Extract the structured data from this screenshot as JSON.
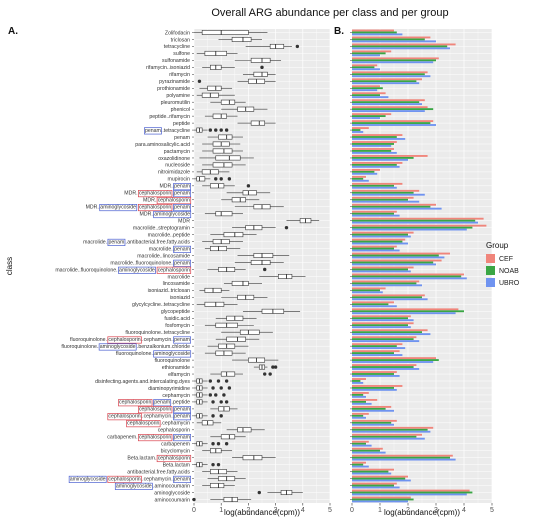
{
  "chart_data": {
    "type": "bar",
    "title": "Overall ARG abundance per class and per group",
    "panels": [
      "A.",
      "B."
    ],
    "ylabel": "class",
    "xlabel_a": "log(abundance(cpm))",
    "xlabel_b": "log(abundance(cpm))",
    "xlim_a": [
      0,
      5
    ],
    "xlim_b": [
      0,
      5
    ],
    "xticks": [
      "0",
      "1",
      "2",
      "3",
      "4",
      "5"
    ],
    "grid": true,
    "legend_title": "Group",
    "legend_position": "right",
    "colors": {
      "CEF": "#f0857b",
      "NOAB": "#3aa644",
      "UBRO": "#6f93f0",
      "panel_bg": "#ebebeb",
      "grid": "#ffffff",
      "highlight_red": "#d9434e",
      "highlight_blue": "#4a5fd0"
    },
    "series": [
      {
        "name": "CEF",
        "color": "#f0857b"
      },
      {
        "name": "NOAB",
        "color": "#3aa644"
      },
      {
        "name": "UBRO",
        "color": "#6f93f0"
      }
    ],
    "categories": [
      {
        "label": "Zolifodacin",
        "box": [
          0,
          0.3,
          1.0,
          2.0,
          2.7
        ],
        "out": [],
        "bars": [
          1.5,
          1.6,
          1.8
        ]
      },
      {
        "label": "triclosan",
        "box": [
          0.9,
          1.4,
          1.8,
          2.1,
          2.5
        ],
        "out": [],
        "bars": [
          2.8,
          2.6,
          3.0
        ]
      },
      {
        "label": "tetracycline",
        "box": [
          1.9,
          2.8,
          3.0,
          3.3,
          3.6
        ],
        "out": [
          3.8
        ],
        "bars": [
          3.7,
          3.4,
          3.5
        ]
      },
      {
        "label": "sulfone",
        "box": [
          0.1,
          0.4,
          0.8,
          1.2,
          1.6
        ],
        "out": [],
        "bars": [
          1.4,
          1.2,
          1.0
        ]
      },
      {
        "label": "sulfonamide",
        "box": [
          1.5,
          2.1,
          2.5,
          2.8,
          3.2
        ],
        "out": [],
        "bars": [
          3.1,
          3.0,
          2.9
        ]
      },
      {
        "label": "rifamycin..isoniazid",
        "box": [
          0.3,
          0.6,
          0.8,
          1.0,
          1.5
        ],
        "out": [
          2.5
        ],
        "bars": [
          0.9,
          0.8,
          1.0
        ]
      },
      {
        "label": "rifamycin",
        "box": [
          1.8,
          2.2,
          2.5,
          2.7,
          3.0
        ],
        "out": [],
        "bars": [
          2.7,
          2.6,
          2.8
        ]
      },
      {
        "label": "pyrazinamide",
        "box": [
          1.6,
          2.0,
          2.3,
          2.6,
          3.0
        ],
        "out": [
          0.2
        ],
        "bars": [
          2.5,
          2.3,
          2.4
        ]
      },
      {
        "label": "prothionamide",
        "box": [
          0.2,
          0.5,
          0.8,
          1.0,
          1.4
        ],
        "out": [],
        "bars": [
          1.0,
          1.1,
          0.9
        ]
      },
      {
        "label": "polyamine",
        "box": [
          0.1,
          0.3,
          0.6,
          0.9,
          1.5
        ],
        "out": [],
        "bars": [
          1.2,
          1.0,
          1.3
        ]
      },
      {
        "label": "pleuromutilin",
        "box": [
          0.6,
          1.0,
          1.3,
          1.5,
          1.9
        ],
        "out": [],
        "bars": [
          2.6,
          2.4,
          2.5
        ]
      },
      {
        "label": "phenicol",
        "box": [
          1.0,
          1.6,
          1.9,
          2.2,
          2.7
        ],
        "out": [],
        "bars": [
          2.7,
          2.9,
          2.6
        ]
      },
      {
        "label": "peptide..rifamycin",
        "box": [
          0.4,
          0.7,
          1.0,
          1.2,
          1.6
        ],
        "out": [],
        "bars": [
          1.4,
          1.2,
          1.0
        ]
      },
      {
        "label": "peptide",
        "box": [
          1.6,
          2.1,
          2.4,
          2.6,
          3.0
        ],
        "out": [],
        "bars": [
          2.9,
          2.8,
          3.0
        ]
      },
      {
        "label": "penam..tetracycline",
        "box": [
          0,
          0.1,
          0.2,
          0.3,
          0.5
        ],
        "out": [
          0.6,
          0.8,
          1.0,
          1.2
        ],
        "bars": [
          0.6,
          0.3,
          0.4
        ]
      },
      {
        "label": "penam",
        "box": [
          0.5,
          0.9,
          1.2,
          1.4,
          1.8
        ],
        "out": [],
        "bars": [
          1.8,
          1.6,
          1.9
        ]
      },
      {
        "label": "para.aminosalicylic.acid",
        "box": [
          0.3,
          0.7,
          1.0,
          1.3,
          1.7
        ],
        "out": [],
        "bars": [
          1.6,
          1.5,
          1.4
        ]
      },
      {
        "label": "pactamycin",
        "box": [
          0.3,
          0.7,
          1.1,
          1.4,
          1.8
        ],
        "out": [],
        "bars": [
          1.5,
          1.4,
          1.6
        ]
      },
      {
        "label": "oxazolidinone",
        "box": [
          0.2,
          0.8,
          1.3,
          1.7,
          2.2
        ],
        "out": [],
        "bars": [
          2.7,
          2.2,
          2.0
        ]
      },
      {
        "label": "nucleoside",
        "box": [
          0.3,
          0.7,
          1.1,
          1.4,
          1.9
        ],
        "out": [],
        "bars": [
          1.8,
          1.6,
          1.7
        ]
      },
      {
        "label": "nitroimidazole",
        "box": [
          0.1,
          0.3,
          0.6,
          0.9,
          1.3
        ],
        "out": [],
        "bars": [
          1.0,
          0.8,
          0.9
        ]
      },
      {
        "label": "mupirocin",
        "box": [
          0,
          0.1,
          0.2,
          0.4,
          0.6
        ],
        "out": [
          0.8,
          1.0,
          1.3
        ],
        "bars": [
          0.5,
          0.4,
          0.6
        ]
      },
      {
        "label": "MDR..penam",
        "box": [
          0.3,
          0.6,
          0.9,
          1.1,
          1.5
        ],
        "out": [
          2.0
        ],
        "bars": [
          1.8,
          1.5,
          1.6
        ]
      },
      {
        "label": "MDR..cephalosporin..penam",
        "box": [
          1.2,
          1.8,
          2.0,
          2.3,
          2.8
        ],
        "out": [],
        "bars": [
          2.4,
          2.2,
          2.6
        ]
      },
      {
        "label": "MDR..cephalosporin",
        "box": [
          1.0,
          1.4,
          1.7,
          1.9,
          2.4
        ],
        "out": [],
        "bars": [
          2.2,
          2.0,
          2.4
        ]
      },
      {
        "label": "MDR..aminoglycoside..cephalosporin..penam",
        "box": [
          1.5,
          2.2,
          2.5,
          2.8,
          3.3
        ],
        "out": [],
        "bars": [
          3.0,
          2.8,
          3.2
        ]
      },
      {
        "label": "MDR..aminoglycoside",
        "box": [
          0.4,
          0.8,
          1.0,
          1.4,
          1.8
        ],
        "out": [],
        "bars": [
          1.6,
          1.5,
          1.7
        ]
      },
      {
        "label": "MDR",
        "box": [
          3.4,
          3.9,
          4.1,
          4.3,
          4.6
        ],
        "out": [],
        "bars": [
          4.7,
          4.4,
          4.5
        ]
      },
      {
        "label": "macrolide..streptogramin",
        "box": [
          1.4,
          1.9,
          2.2,
          2.5,
          3.0
        ],
        "out": [
          3.4
        ],
        "bars": [
          4.8,
          4.3,
          4.1
        ]
      },
      {
        "label": "macrolide..peptide",
        "box": [
          0.6,
          1.1,
          1.5,
          1.8,
          2.3
        ],
        "out": [],
        "bars": [
          2.2,
          2.0,
          2.1
        ]
      },
      {
        "label": "macrolide..penam..antibacterial.free.fatty.acids",
        "box": [
          0.3,
          0.7,
          1.0,
          1.3,
          1.8
        ],
        "out": [],
        "bars": [
          1.9,
          1.8,
          2.0
        ]
      },
      {
        "label": "macrolide..penam",
        "box": [
          0.4,
          0.6,
          0.9,
          1.2,
          1.7
        ],
        "out": [],
        "bars": [
          1.6,
          1.5,
          1.7
        ]
      },
      {
        "label": "macrolide..lincosamide",
        "box": [
          1.6,
          2.2,
          2.5,
          2.9,
          3.5
        ],
        "out": [],
        "bars": [
          3.5,
          3.1,
          3.3
        ]
      },
      {
        "label": "macrolide..fluoroquinolone..penam",
        "box": [
          1.5,
          2.1,
          2.5,
          2.8,
          3.3
        ],
        "out": [],
        "bars": [
          3.2,
          2.9,
          3.0
        ]
      },
      {
        "label": "macrolide..fluoroquinolone..aminoglycoside..cephalosporin",
        "box": [
          0.5,
          0.9,
          1.2,
          1.5,
          1.9
        ],
        "out": [
          2.6
        ],
        "bars": [
          2.2,
          2.0,
          2.1
        ]
      },
      {
        "label": "macrolide",
        "box": [
          2.4,
          3.1,
          3.4,
          3.6,
          4.1
        ],
        "out": [],
        "bars": [
          4.0,
          3.9,
          4.1
        ]
      },
      {
        "label": "lincosamide",
        "box": [
          1.1,
          1.4,
          1.8,
          2.0,
          2.5
        ],
        "out": [],
        "bars": [
          2.4,
          2.3,
          2.5
        ]
      },
      {
        "label": "isoniazid..triclosan",
        "box": [
          0.2,
          0.4,
          0.7,
          1.0,
          1.3
        ],
        "out": [],
        "bars": [
          1.2,
          1.0,
          1.1
        ]
      },
      {
        "label": "isoniazid",
        "box": [
          1.0,
          1.6,
          1.9,
          2.2,
          2.7
        ],
        "out": [],
        "bars": [
          2.6,
          2.5,
          2.7
        ]
      },
      {
        "label": "glycylcycline..tetracycline",
        "box": [
          0.1,
          0.4,
          0.8,
          1.1,
          1.6
        ],
        "out": [],
        "bars": [
          1.5,
          1.3,
          1.6
        ]
      },
      {
        "label": "glycopeptide",
        "box": [
          1.8,
          2.5,
          2.9,
          3.3,
          3.9
        ],
        "out": [],
        "bars": [
          3.8,
          4.0,
          3.7
        ]
      },
      {
        "label": "fusidic.acid",
        "box": [
          0.8,
          1.2,
          1.5,
          1.8,
          2.3
        ],
        "out": [],
        "bars": [
          2.1,
          2.0,
          2.2
        ]
      },
      {
        "label": "fosfomycin",
        "box": [
          0.4,
          0.8,
          1.2,
          1.6,
          2.2
        ],
        "out": [],
        "bars": [
          2.2,
          2.0,
          2.1
        ]
      },
      {
        "label": "fluoroquinolone..tetracycline",
        "box": [
          1.0,
          1.7,
          2.0,
          2.4,
          2.9
        ],
        "out": [],
        "bars": [
          2.7,
          2.5,
          2.8
        ]
      },
      {
        "label": "fluoroquinolone..cephalosporin..cephamycin..penam",
        "box": [
          0.8,
          1.2,
          1.6,
          1.9,
          2.4
        ],
        "out": [],
        "bars": [
          2.3,
          2.2,
          2.4
        ]
      },
      {
        "label": "fluoroquinolone..aminoglycoside..benzalkonium.chloride",
        "box": [
          0.5,
          0.9,
          1.2,
          1.5,
          2.0
        ],
        "out": [],
        "bars": [
          1.8,
          1.6,
          1.9
        ]
      },
      {
        "label": "fluoroquinolone..aminoglycoside",
        "box": [
          0.4,
          0.8,
          1.1,
          1.4,
          1.9
        ],
        "out": [],
        "bars": [
          1.7,
          1.5,
          1.8
        ]
      },
      {
        "label": "fluoroquinolone",
        "box": [
          1.4,
          2.0,
          2.3,
          2.6,
          3.1
        ],
        "out": [],
        "bars": [
          3.0,
          3.1,
          2.9
        ]
      },
      {
        "label": "ethionamide",
        "box": [
          2.2,
          2.4,
          2.5,
          2.6,
          2.7
        ],
        "out": [
          2.9,
          3.0
        ],
        "bars": [
          2.3,
          2.2,
          2.4
        ]
      },
      {
        "label": "elfamycin",
        "box": [
          0.6,
          1.0,
          1.2,
          1.5,
          1.8
        ],
        "out": [
          2.6,
          2.8
        ],
        "bars": [
          1.6,
          1.5,
          1.7
        ]
      },
      {
        "label": "disinfecting.agents.and.intercalating.dyes",
        "box": [
          0,
          0.1,
          0.2,
          0.3,
          0.5
        ],
        "out": [
          0.6,
          0.9,
          1.2
        ],
        "bars": [
          0.5,
          0.3,
          0.4
        ]
      },
      {
        "label": "diaminopyrimidine",
        "box": [
          0,
          0.1,
          0.2,
          0.3,
          0.5
        ],
        "out": [
          0.7,
          1.0,
          1.3
        ],
        "bars": [
          1.8,
          1.5,
          1.6
        ]
      },
      {
        "label": "cephamycin",
        "box": [
          0,
          0.1,
          0.2,
          0.3,
          0.5
        ],
        "out": [
          0.6,
          0.8,
          1.1
        ],
        "bars": [
          0.6,
          0.4,
          0.5
        ]
      },
      {
        "label": "cephalosporin..penam..peptide",
        "box": [
          0,
          0.1,
          0.2,
          0.3,
          0.5
        ],
        "out": [
          0.7,
          1.0,
          1.2
        ],
        "bars": [
          0.9,
          0.5,
          0.7
        ]
      },
      {
        "label": "cephalosporin..penam",
        "box": [
          0.6,
          0.9,
          1.1,
          1.3,
          1.6
        ],
        "out": [],
        "bars": [
          1.4,
          1.2,
          1.5
        ]
      },
      {
        "label": "cephalosporin..cephamycin..penam",
        "box": [
          0,
          0.1,
          0.2,
          0.3,
          0.5
        ],
        "out": [
          0.7,
          1.0
        ],
        "bars": [
          0.6,
          0.4,
          0.5
        ]
      },
      {
        "label": "cephalosporin..cephamycin",
        "box": [
          0.1,
          0.3,
          0.5,
          0.7,
          1.0
        ],
        "out": [],
        "bars": [
          1.6,
          1.4,
          1.5
        ]
      },
      {
        "label": "cephalosporin",
        "box": [
          1.2,
          1.6,
          1.8,
          2.1,
          2.6
        ],
        "out": [],
        "bars": [
          2.9,
          2.7,
          2.8
        ]
      },
      {
        "label": "carbapenem..cephalosporin..penam",
        "box": [
          0.6,
          1.0,
          1.3,
          1.5,
          1.9
        ],
        "out": [],
        "bars": [
          2.5,
          2.3,
          2.6
        ]
      },
      {
        "label": "carbapenem",
        "box": [
          0,
          0.1,
          0.2,
          0.3,
          0.5
        ],
        "out": [
          0.7,
          0.9,
          1.2
        ],
        "bars": [
          0.6,
          0.5,
          0.7
        ]
      },
      {
        "label": "bicyclomycin",
        "box": [
          0.3,
          0.6,
          0.8,
          1.0,
          1.4
        ],
        "out": [],
        "bars": [
          1.1,
          1.0,
          1.2
        ]
      },
      {
        "label": "Beta.lactam..cephalosporin",
        "box": [
          1.4,
          1.8,
          2.2,
          2.5,
          3.0
        ],
        "out": [],
        "bars": [
          3.6,
          3.5,
          3.7
        ]
      },
      {
        "label": "Beta.lactam",
        "box": [
          0,
          0.1,
          0.2,
          0.3,
          0.5
        ],
        "out": [
          0.7,
          0.9
        ],
        "bars": [
          0.5,
          0.4,
          0.6
        ]
      },
      {
        "label": "antibacterial.free.fatty.acids",
        "box": [
          0.3,
          0.6,
          0.9,
          1.2,
          1.6
        ],
        "out": [],
        "bars": [
          1.5,
          1.3,
          1.4
        ]
      },
      {
        "label": "aminoglycoside..cephalosporin..cephamycin..penam",
        "box": [
          0.5,
          0.9,
          1.2,
          1.5,
          1.9
        ],
        "out": [],
        "bars": [
          2.0,
          1.9,
          2.1
        ]
      },
      {
        "label": "aminoglycoside..aminocoumarin",
        "box": [
          0.3,
          0.6,
          0.9,
          1.1,
          1.5
        ],
        "out": [],
        "bars": [
          1.6,
          1.5,
          1.7
        ]
      },
      {
        "label": "aminoglycoside",
        "box": [
          2.7,
          3.2,
          3.4,
          3.6,
          4.0
        ],
        "out": [
          2.4
        ],
        "bars": [
          4.2,
          4.3,
          4.1
        ]
      },
      {
        "label": "aminocoumarin",
        "box": [
          0.6,
          1.1,
          1.4,
          1.6,
          2.1
        ],
        "out": [
          0
        ],
        "bars": [
          2.1,
          2.2,
          2.0
        ]
      }
    ]
  }
}
